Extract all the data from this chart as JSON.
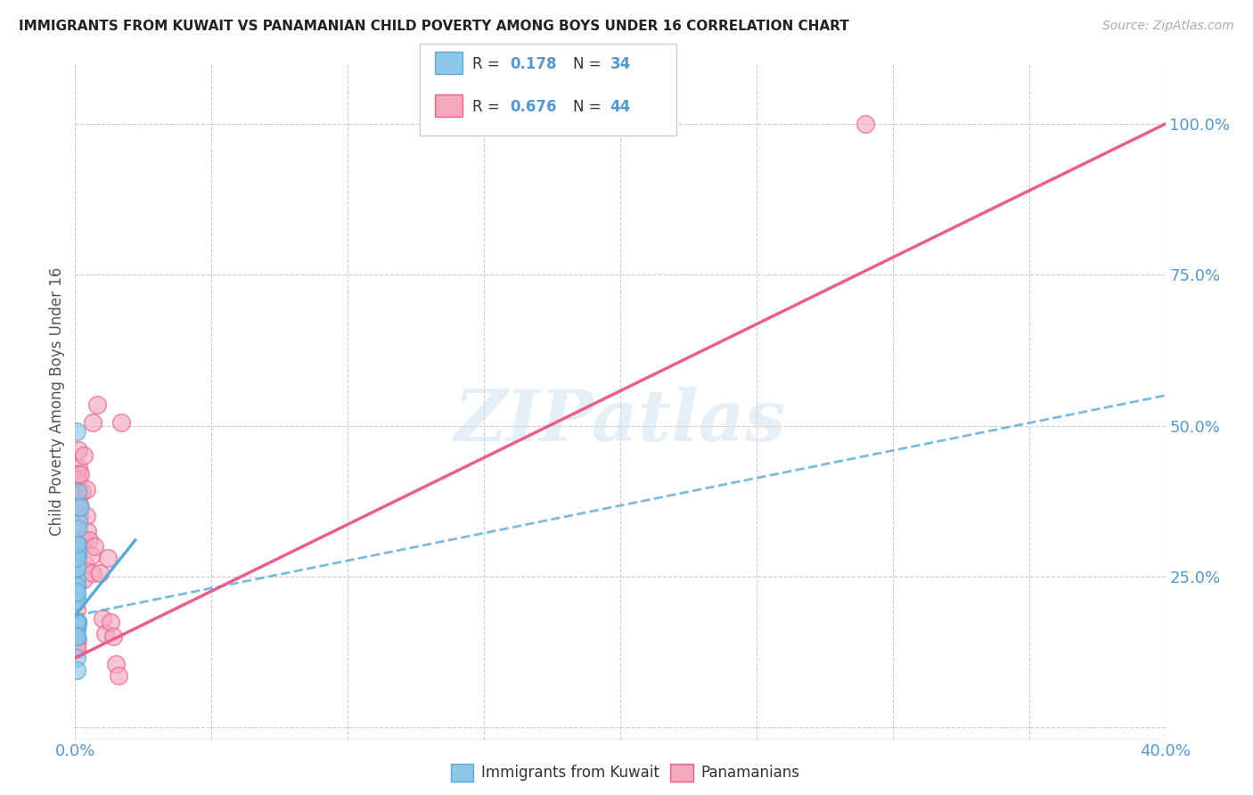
{
  "title": "IMMIGRANTS FROM KUWAIT VS PANAMANIAN CHILD POVERTY AMONG BOYS UNDER 16 CORRELATION CHART",
  "source": "Source: ZipAtlas.com",
  "ylabel": "Child Poverty Among Boys Under 16",
  "xlim": [
    0.0,
    0.4
  ],
  "ylim": [
    -0.02,
    1.1
  ],
  "xticks": [
    0.0,
    0.05,
    0.1,
    0.15,
    0.2,
    0.25,
    0.3,
    0.35,
    0.4
  ],
  "xticklabels": [
    "0.0%",
    "",
    "",
    "",
    "",
    "",
    "",
    "",
    "40.0%"
  ],
  "yticks_right": [
    0.0,
    0.25,
    0.5,
    0.75,
    1.0
  ],
  "yticklabels_right": [
    "",
    "25.0%",
    "50.0%",
    "75.0%",
    "100.0%"
  ],
  "color_blue": "#8ec6e8",
  "color_pink": "#f4a8be",
  "color_blue_line": "#5baad6",
  "color_pink_line": "#e8608a",
  "color_blue_text": "#5599cc",
  "watermark": "ZIPatlas",
  "legend_label1": "Immigrants from Kuwait",
  "legend_label2": "Panamanians",
  "blue_dots_x": [
    0.0005,
    0.0008,
    0.001,
    0.0005,
    0.0005,
    0.0008,
    0.0005,
    0.0005,
    0.0005,
    0.0005,
    0.001,
    0.0005,
    0.0005,
    0.001,
    0.0012,
    0.0005,
    0.0005,
    0.0005,
    0.001,
    0.0005,
    0.0005,
    0.0005,
    0.0005,
    0.0012,
    0.001,
    0.0005,
    0.001,
    0.0005,
    0.0005,
    0.0005,
    0.0005,
    0.002,
    0.0005,
    0.0005
  ],
  "blue_dots_y": [
    0.285,
    0.175,
    0.175,
    0.175,
    0.165,
    0.285,
    0.245,
    0.21,
    0.235,
    0.22,
    0.305,
    0.265,
    0.165,
    0.295,
    0.34,
    0.235,
    0.265,
    0.28,
    0.39,
    0.305,
    0.165,
    0.21,
    0.225,
    0.365,
    0.33,
    0.49,
    0.175,
    0.15,
    0.175,
    0.15,
    0.15,
    0.365,
    0.115,
    0.095
  ],
  "pink_dots_x": [
    0.0004,
    0.0008,
    0.0004,
    0.0012,
    0.0012,
    0.0008,
    0.0008,
    0.0004,
    0.0012,
    0.0004,
    0.0008,
    0.0012,
    0.0008,
    0.0012,
    0.0012,
    0.0016,
    0.0016,
    0.0024,
    0.0024,
    0.0016,
    0.002,
    0.003,
    0.003,
    0.0032,
    0.0036,
    0.004,
    0.004,
    0.0044,
    0.005,
    0.006,
    0.0064,
    0.0064,
    0.0072,
    0.008,
    0.009,
    0.01,
    0.011,
    0.012,
    0.013,
    0.014,
    0.015,
    0.016,
    0.017,
    0.29
  ],
  "pink_dots_y": [
    0.195,
    0.145,
    0.165,
    0.46,
    0.43,
    0.42,
    0.41,
    0.13,
    0.39,
    0.135,
    0.37,
    0.39,
    0.27,
    0.35,
    0.37,
    0.39,
    0.35,
    0.31,
    0.39,
    0.37,
    0.42,
    0.45,
    0.245,
    0.31,
    0.27,
    0.395,
    0.35,
    0.325,
    0.31,
    0.285,
    0.255,
    0.505,
    0.3,
    0.535,
    0.255,
    0.18,
    0.155,
    0.28,
    0.175,
    0.15,
    0.105,
    0.085,
    0.505,
    1.0
  ],
  "blue_line_x": [
    0.0,
    0.022
  ],
  "blue_line_y": [
    0.185,
    0.31
  ],
  "blue_dash_line_x": [
    0.0,
    0.4
  ],
  "blue_dash_line_y": [
    0.185,
    0.55
  ],
  "pink_line_x": [
    0.0,
    0.4
  ],
  "pink_line_y": [
    0.115,
    1.0
  ]
}
